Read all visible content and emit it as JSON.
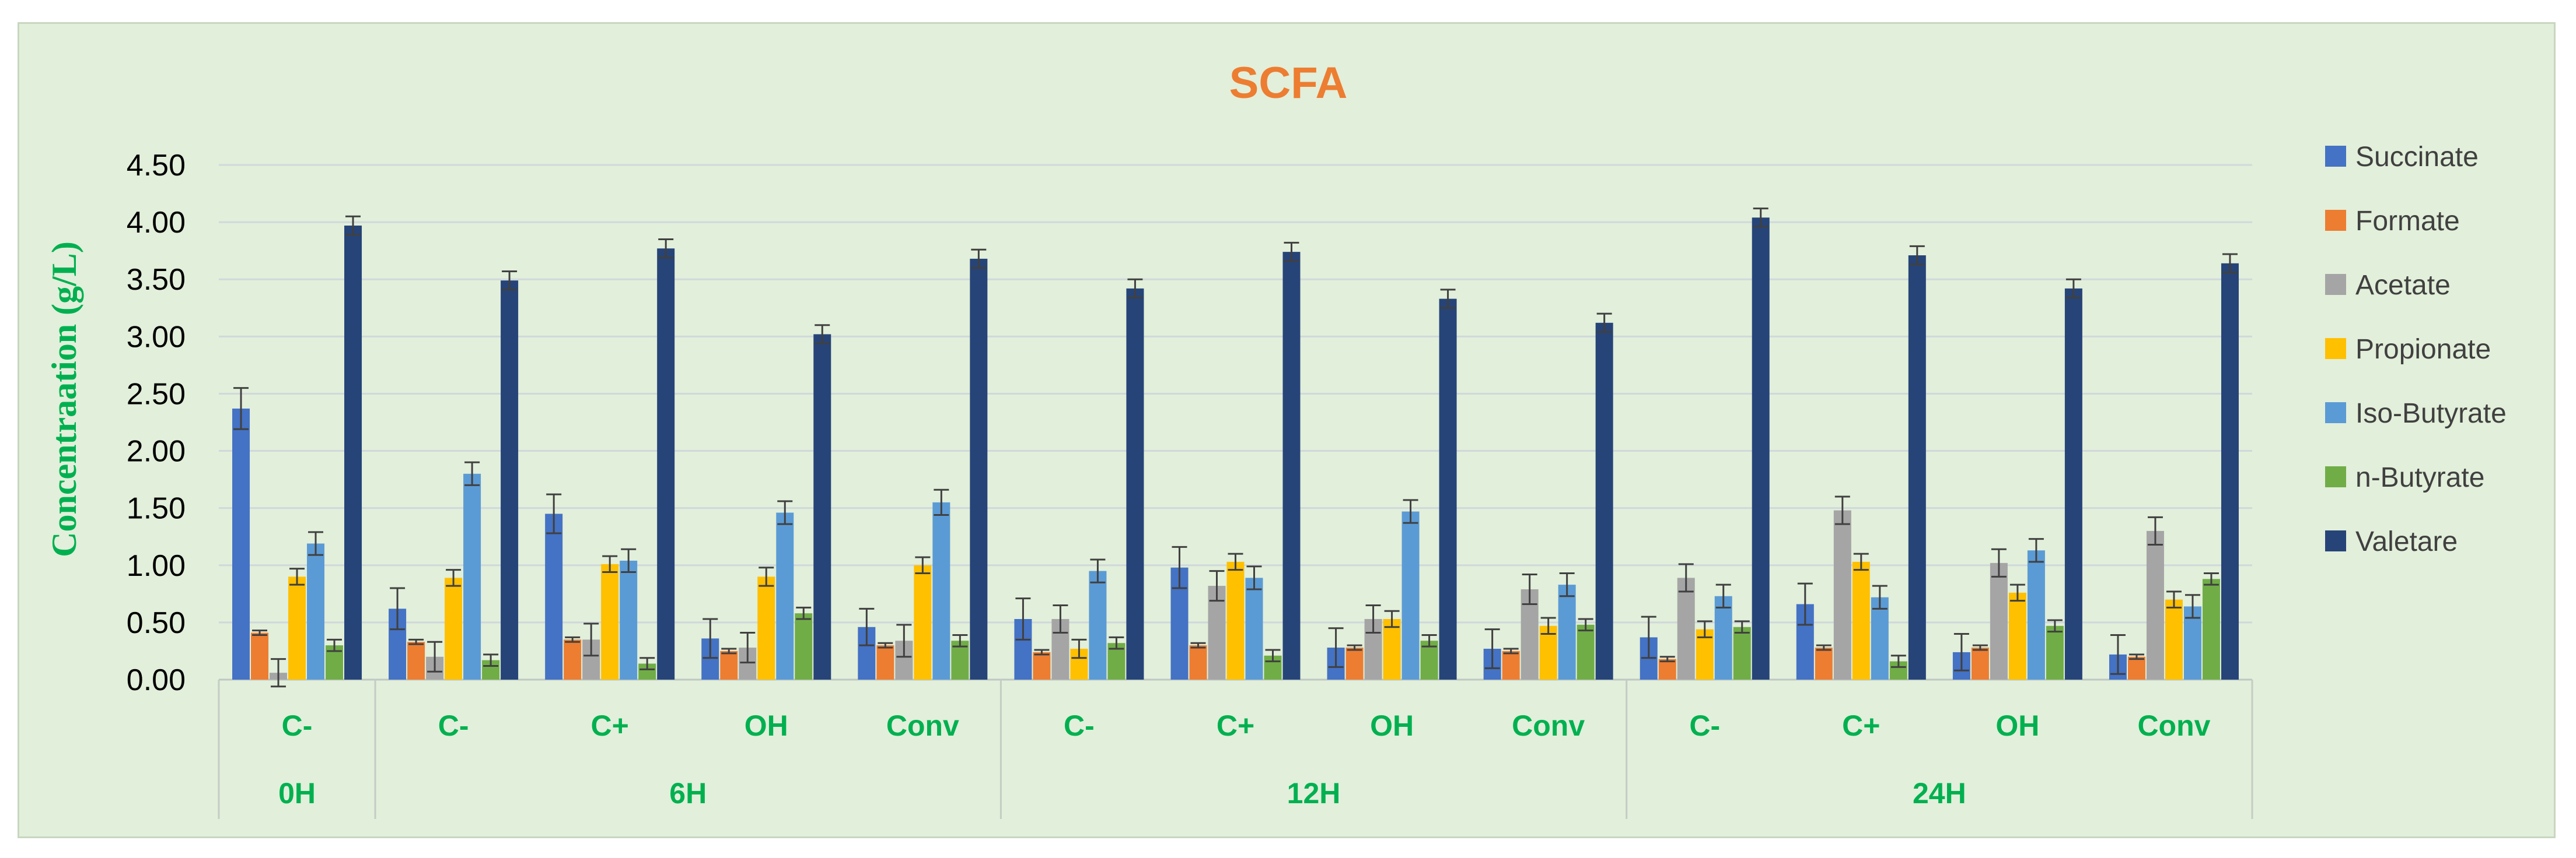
{
  "chart_data": {
    "type": "bar",
    "title": "SCFA",
    "ylabel": "Concentraation (g/L)",
    "xlabel": "",
    "ylim": [
      0,
      4.5
    ],
    "yticks": [
      "0.00",
      "0.50",
      "1.00",
      "1.50",
      "2.00",
      "2.50",
      "3.00",
      "3.50",
      "4.00",
      "4.50"
    ],
    "grid": true,
    "legend_position": "right",
    "groups": [
      {
        "label": "0H",
        "categories": [
          "C-"
        ]
      },
      {
        "label": "6H",
        "categories": [
          "C-",
          "C+",
          "OH",
          "Conv"
        ]
      },
      {
        "label": "12H",
        "categories": [
          "C-",
          "C+",
          "OH",
          "Conv"
        ]
      },
      {
        "label": "24H",
        "categories": [
          "C-",
          "C+",
          "OH",
          "Conv"
        ]
      }
    ],
    "series": [
      {
        "name": "Succinate",
        "color": "#4472c4",
        "values": [
          2.37,
          0.62,
          1.45,
          0.36,
          0.46,
          0.53,
          0.98,
          0.28,
          0.27,
          0.37,
          0.66,
          0.24,
          0.22
        ],
        "errors": [
          0.18,
          0.18,
          0.17,
          0.17,
          0.16,
          0.18,
          0.18,
          0.17,
          0.17,
          0.18,
          0.18,
          0.16,
          0.17
        ]
      },
      {
        "name": "Formate",
        "color": "#ed7d31",
        "values": [
          0.41,
          0.33,
          0.35,
          0.25,
          0.3,
          0.24,
          0.3,
          0.28,
          0.25,
          0.18,
          0.28,
          0.28,
          0.2
        ],
        "errors": [
          0.02,
          0.02,
          0.02,
          0.02,
          0.02,
          0.02,
          0.02,
          0.02,
          0.02,
          0.02,
          0.02,
          0.02,
          0.02
        ]
      },
      {
        "name": "Acetate",
        "color": "#a5a5a5",
        "values": [
          0.06,
          0.2,
          0.35,
          0.28,
          0.34,
          0.53,
          0.82,
          0.53,
          0.79,
          0.89,
          1.48,
          1.02,
          1.3
        ],
        "errors": [
          0.12,
          0.13,
          0.14,
          0.13,
          0.14,
          0.12,
          0.13,
          0.12,
          0.13,
          0.12,
          0.12,
          0.12,
          0.12
        ]
      },
      {
        "name": "Propionate",
        "color": "#ffc000",
        "values": [
          0.9,
          0.89,
          1.01,
          0.9,
          1.0,
          0.27,
          1.03,
          0.53,
          0.47,
          0.44,
          1.03,
          0.76,
          0.7
        ],
        "errors": [
          0.07,
          0.07,
          0.07,
          0.08,
          0.07,
          0.08,
          0.07,
          0.07,
          0.07,
          0.07,
          0.07,
          0.07,
          0.07
        ]
      },
      {
        "name": "Iso-Butyrate",
        "color": "#5b9bd5",
        "values": [
          1.19,
          1.8,
          1.04,
          1.46,
          1.55,
          0.95,
          0.89,
          1.47,
          0.83,
          0.73,
          0.72,
          1.13,
          0.64
        ],
        "errors": [
          0.1,
          0.1,
          0.1,
          0.1,
          0.11,
          0.1,
          0.1,
          0.1,
          0.1,
          0.1,
          0.1,
          0.1,
          0.1
        ]
      },
      {
        "name": "n-Butyrate",
        "color": "#70ad47",
        "values": [
          0.3,
          0.17,
          0.14,
          0.58,
          0.34,
          0.32,
          0.21,
          0.34,
          0.48,
          0.46,
          0.16,
          0.47,
          0.88
        ],
        "errors": [
          0.05,
          0.05,
          0.05,
          0.05,
          0.05,
          0.05,
          0.05,
          0.05,
          0.05,
          0.05,
          0.05,
          0.05,
          0.05
        ]
      },
      {
        "name": "Valetare",
        "color": "#264478",
        "values": [
          3.97,
          3.49,
          3.77,
          3.02,
          3.68,
          3.42,
          3.74,
          3.33,
          3.12,
          4.04,
          3.71,
          3.42,
          3.64
        ],
        "errors": [
          0.08,
          0.08,
          0.08,
          0.08,
          0.08,
          0.08,
          0.08,
          0.08,
          0.08,
          0.08,
          0.08,
          0.08,
          0.08
        ]
      }
    ],
    "colors": {
      "background": "#e2efda",
      "title": "#ed7d31",
      "ylabel": "#00b050",
      "category_labels": "#00b050",
      "gridline": "#d0d8dc",
      "error_bar": "#404040"
    }
  }
}
